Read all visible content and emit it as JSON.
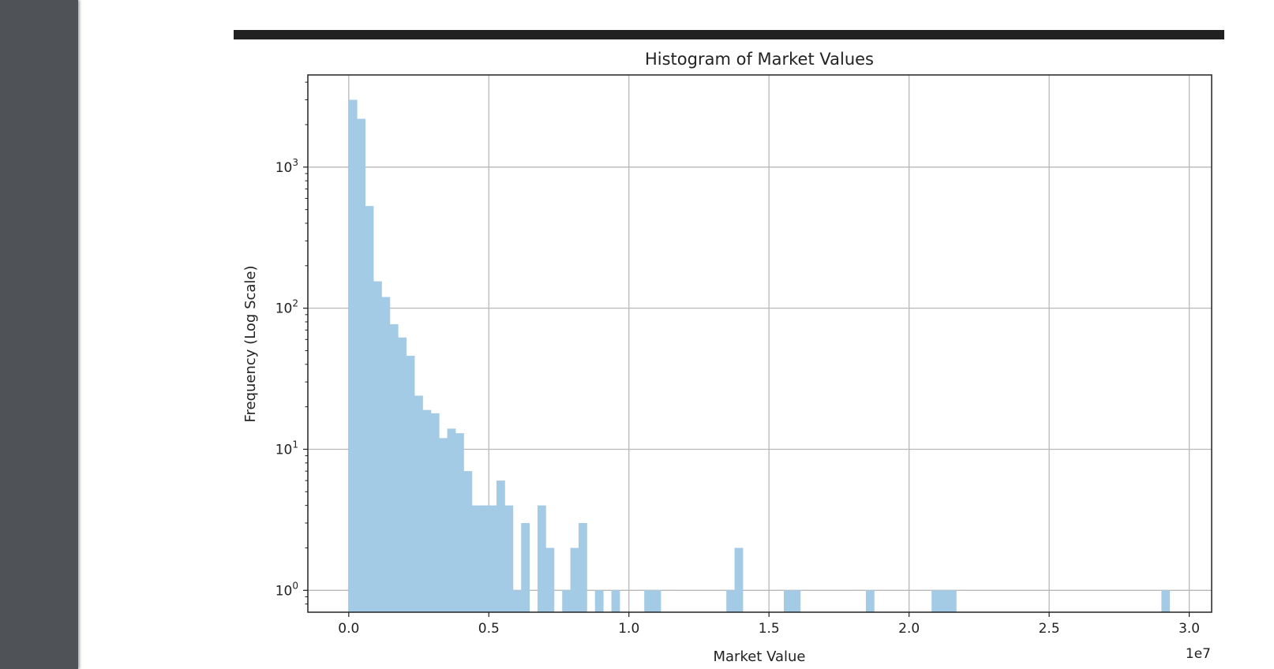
{
  "chart_data": {
    "type": "bar",
    "title": "Histogram of Market Values",
    "xlabel": "Market Value",
    "ylabel": "Frequency (Log Scale)",
    "x_offset_label": "1e7",
    "yscale": "log",
    "xlim": [
      -1460000,
      30800000
    ],
    "ylim": [
      0.7,
      4500
    ],
    "grid": true,
    "bar_color": "#a3cbe5",
    "x_ticks": [
      {
        "value": 0,
        "label": "0.0"
      },
      {
        "value": 5000000,
        "label": "0.5"
      },
      {
        "value": 10000000,
        "label": "1.0"
      },
      {
        "value": 15000000,
        "label": "1.5"
      },
      {
        "value": 20000000,
        "label": "2.0"
      },
      {
        "value": 25000000,
        "label": "2.5"
      },
      {
        "value": 30000000,
        "label": "3.0"
      }
    ],
    "y_ticks": [
      {
        "value": 1,
        "base": "10",
        "exp": "0"
      },
      {
        "value": 10,
        "base": "10",
        "exp": "1"
      },
      {
        "value": 100,
        "base": "10",
        "exp": "2"
      },
      {
        "value": 1000,
        "base": "10",
        "exp": "3"
      }
    ],
    "bins": {
      "start": 0,
      "width": 293000,
      "counts": [
        3000,
        2200,
        530,
        155,
        120,
        77,
        62,
        46,
        24,
        19,
        18,
        12,
        14,
        13,
        7,
        4,
        4,
        4,
        6,
        4,
        1,
        3,
        0,
        4,
        2,
        0,
        1,
        2,
        3,
        0,
        1,
        0,
        1,
        0,
        0,
        0,
        1,
        1,
        0,
        0,
        0,
        0,
        0,
        0,
        0,
        0,
        1,
        2,
        0,
        0,
        0,
        0,
        0,
        1,
        1,
        0,
        0,
        0,
        0,
        0,
        0,
        0,
        0,
        1,
        0,
        0,
        0,
        0,
        0,
        0,
        0,
        1,
        1,
        1,
        0,
        0,
        0,
        0,
        0,
        0,
        0,
        0,
        0,
        0,
        0,
        0,
        0,
        0,
        0,
        0,
        0,
        0,
        0,
        0,
        0,
        0,
        0,
        0,
        0,
        1
      ]
    }
  }
}
